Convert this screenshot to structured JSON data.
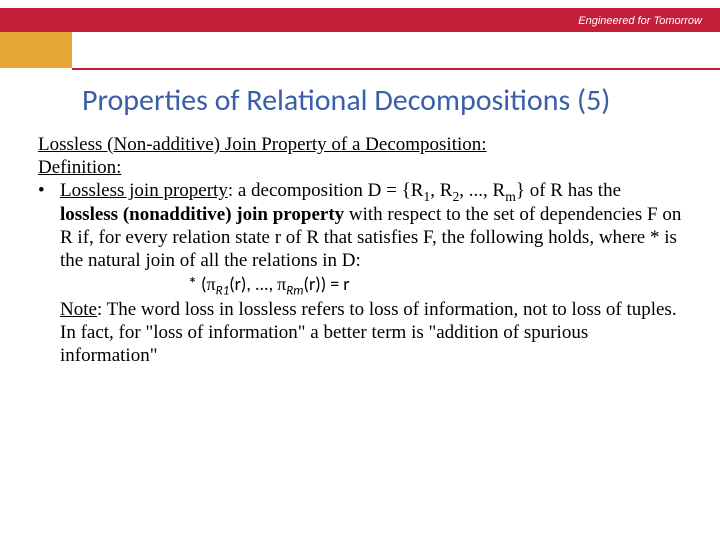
{
  "header": {
    "brand_text": "Engineered for Tomorrow",
    "bar_color": "#c41e3a",
    "accent_color": "#e8a838"
  },
  "slide": {
    "title": "Properties of Relational Decompositions (5)",
    "title_color": "#3a5fa8",
    "subtitle1": "Lossless (Non-additive) Join Property of a Decomposition:",
    "subtitle2": "Definition:",
    "bullet_lead": "Lossless join property",
    "bullet_text_a": ": a decomposition D = {R",
    "bullet_text_b": ", R",
    "bullet_text_c": ", ..., R",
    "bullet_text_d": "} of R has the ",
    "bullet_bold2": "lossless (nonadditive) join property",
    "bullet_text_e": " with respect to the set of dependencies F on R if, for every relation state r of R that satisfies F, the following holds, where * is the natural join of all the relations in D:",
    "sub1": "1",
    "sub2": "2",
    "subm": "m",
    "formula_a": "* (",
    "formula_b": "(r), ..., ",
    "formula_c": "(r)) = r",
    "formula_sub1": "R1",
    "formula_sub2": "Rm",
    "pi": "π",
    "note_label": "Note",
    "note_text": ": The word loss in lossless refers to loss of information, not to loss of tuples. In fact, for \"loss of information\" a  better term is \"addition of spurious information\""
  }
}
